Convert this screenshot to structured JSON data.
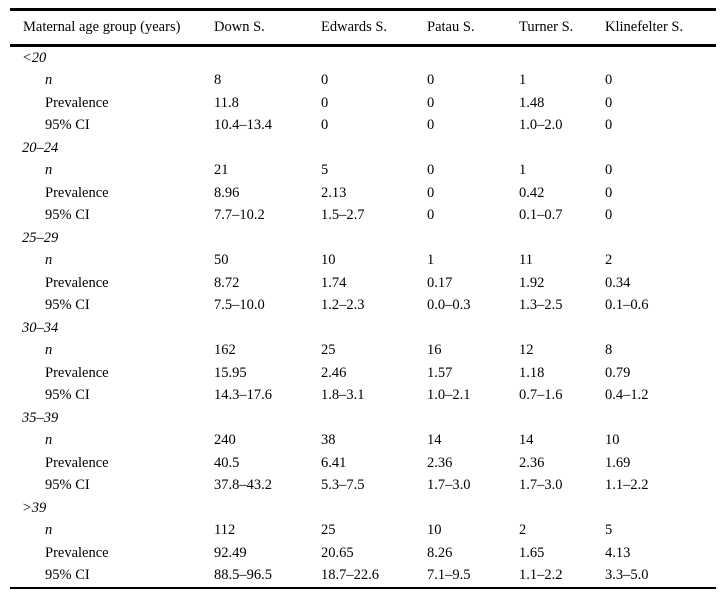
{
  "table": {
    "columns": [
      "Maternal age group (years)",
      "Down S.",
      "Edwards S.",
      "Patau S.",
      "Turner S.",
      "Klinefelter S."
    ],
    "groups": [
      {
        "label": "<20",
        "rows": [
          {
            "label": "n",
            "italic": true,
            "values": [
              "8",
              "0",
              "0",
              "1",
              "0"
            ]
          },
          {
            "label": "Prevalence",
            "italic": false,
            "values": [
              "11.8",
              "0",
              "0",
              "1.48",
              "0"
            ]
          },
          {
            "label": "95% CI",
            "italic": false,
            "values": [
              "10.4–13.4",
              "0",
              "0",
              "1.0–2.0",
              "0"
            ]
          }
        ]
      },
      {
        "label": "20–24",
        "rows": [
          {
            "label": "n",
            "italic": true,
            "values": [
              "21",
              "5",
              "0",
              "1",
              "0"
            ]
          },
          {
            "label": "Prevalence",
            "italic": false,
            "values": [
              "8.96",
              "2.13",
              "0",
              "0.42",
              "0"
            ]
          },
          {
            "label": "95% CI",
            "italic": false,
            "values": [
              "7.7–10.2",
              "1.5–2.7",
              "0",
              "0.1–0.7",
              "0"
            ]
          }
        ]
      },
      {
        "label": "25–29",
        "rows": [
          {
            "label": "n",
            "italic": true,
            "values": [
              "50",
              "10",
              "1",
              "11",
              "2"
            ]
          },
          {
            "label": "Prevalence",
            "italic": false,
            "values": [
              "8.72",
              "1.74",
              "0.17",
              "1.92",
              "0.34"
            ]
          },
          {
            "label": "95% CI",
            "italic": false,
            "values": [
              "7.5–10.0",
              "1.2–2.3",
              "0.0–0.3",
              "1.3–2.5",
              "0.1–0.6"
            ]
          }
        ]
      },
      {
        "label": "30–34",
        "rows": [
          {
            "label": "n",
            "italic": true,
            "values": [
              "162",
              "25",
              "16",
              "12",
              "8"
            ]
          },
          {
            "label": "Prevalence",
            "italic": false,
            "values": [
              "15.95",
              "2.46",
              "1.57",
              "1.18",
              "0.79"
            ]
          },
          {
            "label": "95% CI",
            "italic": false,
            "values": [
              "14.3–17.6",
              "1.8–3.1",
              "1.0–2.1",
              "0.7–1.6",
              "0.4–1.2"
            ]
          }
        ]
      },
      {
        "label": "35–39",
        "rows": [
          {
            "label": "n",
            "italic": true,
            "values": [
              "240",
              "38",
              "14",
              "14",
              "10"
            ]
          },
          {
            "label": "Prevalence",
            "italic": false,
            "values": [
              "40.5",
              "6.41",
              "2.36",
              "2.36",
              "1.69"
            ]
          },
          {
            "label": "95% CI",
            "italic": false,
            "values": [
              "37.8–43.2",
              "5.3–7.5",
              "1.7–3.0",
              "1.7–3.0",
              "1.1–2.2"
            ]
          }
        ]
      },
      {
        "label": ">39",
        "rows": [
          {
            "label": "n",
            "italic": true,
            "values": [
              "112",
              "25",
              "10",
              "2",
              "5"
            ]
          },
          {
            "label": "Prevalence",
            "italic": false,
            "values": [
              "92.49",
              "20.65",
              "8.26",
              "1.65",
              "4.13"
            ]
          },
          {
            "label": "95% CI",
            "italic": false,
            "values": [
              "88.5–96.5",
              "18.7–22.6",
              "7.1–9.5",
              "1.1–2.2",
              "3.3–5.0"
            ]
          }
        ]
      }
    ]
  }
}
